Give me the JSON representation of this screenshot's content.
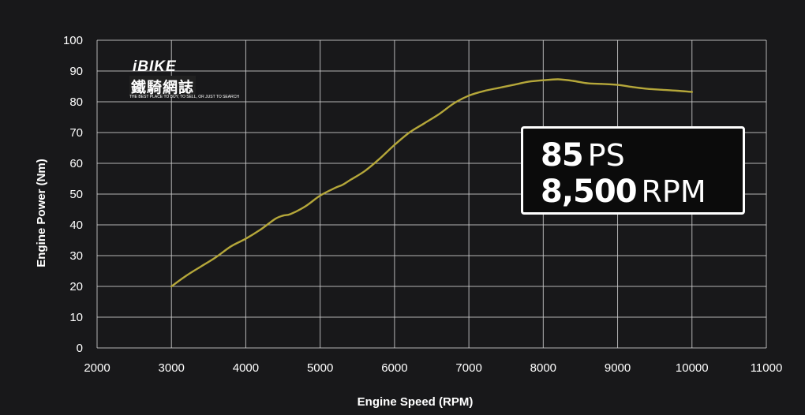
{
  "chart_data": {
    "type": "line",
    "xlabel": "Engine Speed (RPM)",
    "ylabel": "Engine Power (Nm)",
    "xlim": [
      2000,
      11000
    ],
    "ylim": [
      0,
      100
    ],
    "x_ticks": [
      2000,
      3000,
      4000,
      5000,
      6000,
      7000,
      8000,
      9000,
      10000,
      11000
    ],
    "y_ticks": [
      0,
      10,
      20,
      30,
      40,
      50,
      60,
      70,
      80,
      90,
      100
    ],
    "grid": true,
    "line_color": "#b5a73a",
    "series": [
      {
        "x": [
          3000,
          3200,
          3400,
          3600,
          3800,
          4000,
          4200,
          4400,
          4500,
          4600,
          4800,
          5000,
          5200,
          5300,
          5400,
          5600,
          5800,
          6000,
          6200,
          6400,
          6600,
          6800,
          7000,
          7200,
          7400,
          7600,
          7800,
          8000,
          8200,
          8400,
          8600,
          8800,
          9000,
          9200,
          9400,
          9600,
          9800,
          10000
        ],
        "y": [
          20,
          23.5,
          26.5,
          29.5,
          33,
          35.5,
          38.5,
          42,
          43,
          43.5,
          46,
          49.5,
          52,
          53,
          54.5,
          57.5,
          61.5,
          66,
          70,
          73,
          76,
          79.5,
          82,
          83.5,
          84.5,
          85.5,
          86.5,
          87,
          87.3,
          86.8,
          86,
          85.8,
          85.5,
          84.8,
          84.2,
          83.9,
          83.6,
          83.2
        ]
      }
    ]
  },
  "callout": {
    "power_value": "85",
    "power_unit": "PS",
    "rpm_value": "8,500",
    "rpm_unit": "RPM"
  },
  "logo": {
    "main": "iBIKE",
    "sub": "鐵騎網誌",
    "tagline": "THE BEST PLACE TO BUY, TO SELL, OR JUST TO SEARCH"
  }
}
